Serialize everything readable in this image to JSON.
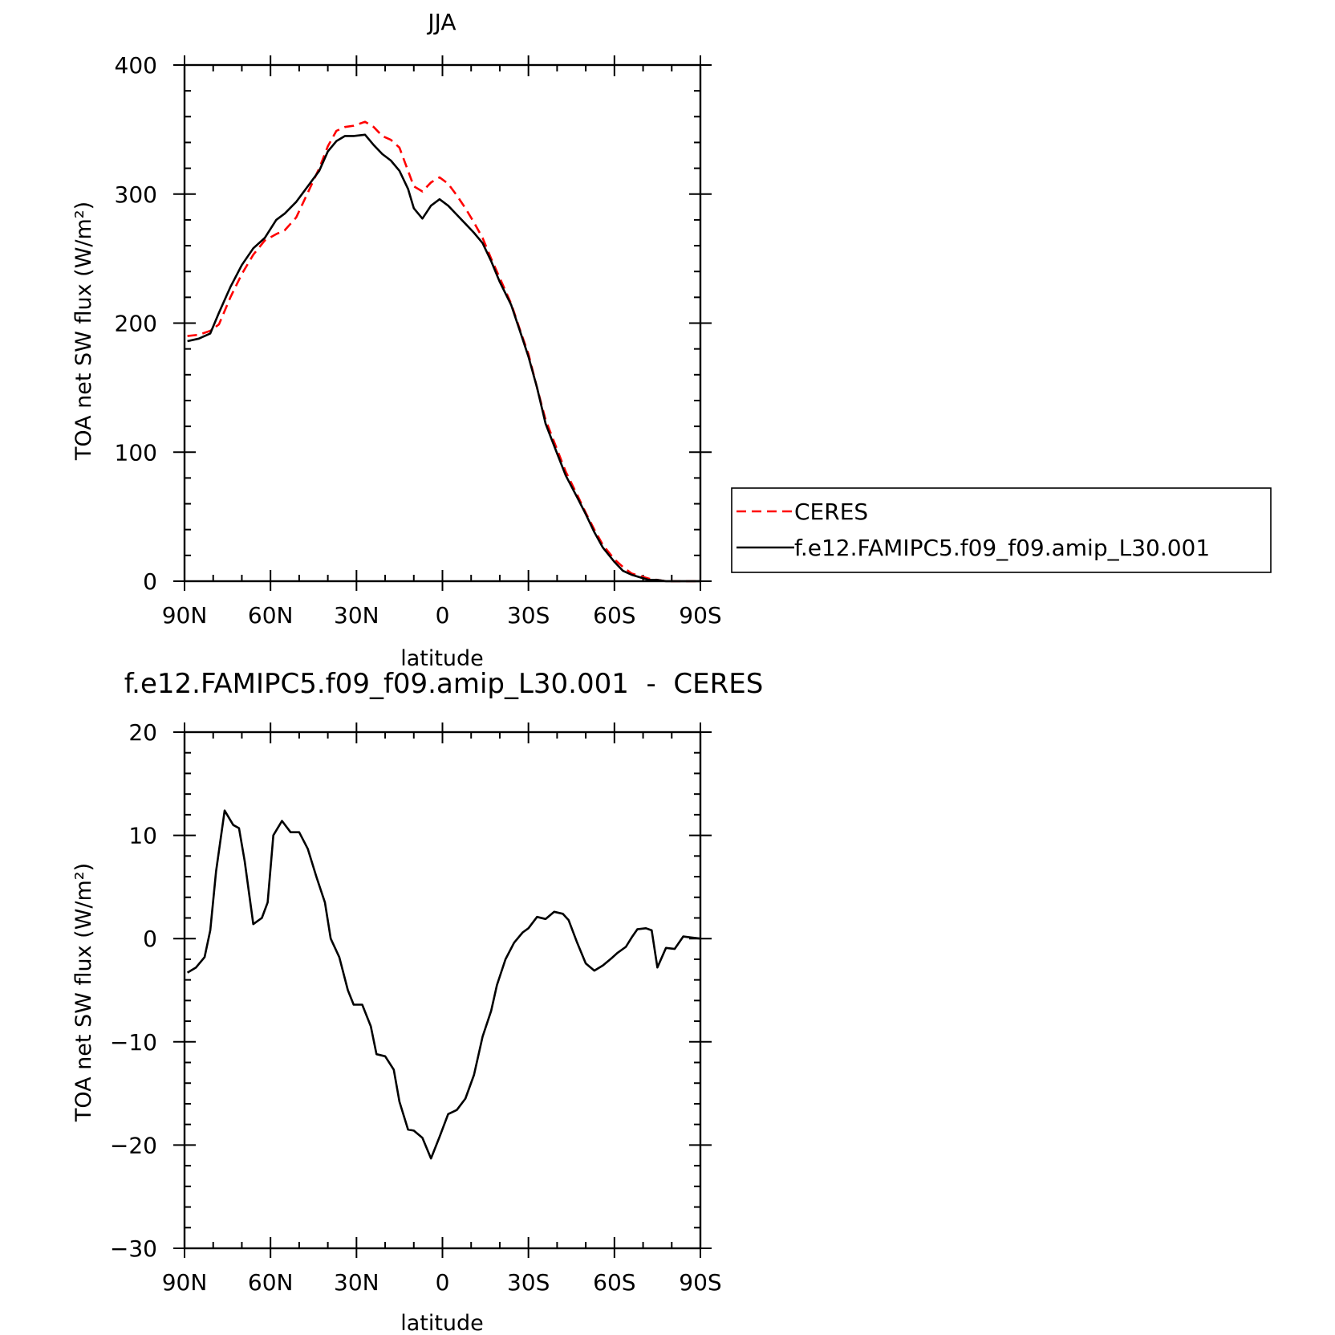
{
  "colors": {
    "ceres": "#ff0000",
    "model": "#000000"
  },
  "chart_data": [
    {
      "type": "line",
      "title": "JJA",
      "xlabel": "latitude",
      "ylabel": "TOA net SW flux (W/m²)",
      "xlim": [
        90,
        -90
      ],
      "ylim": [
        0,
        400
      ],
      "xticks": [
        {
          "value": 90,
          "label": "90N"
        },
        {
          "value": 60,
          "label": "60N"
        },
        {
          "value": 30,
          "label": "30N"
        },
        {
          "value": 0,
          "label": "0"
        },
        {
          "value": -30,
          "label": "30S"
        },
        {
          "value": -60,
          "label": "60S"
        },
        {
          "value": -90,
          "label": "90S"
        }
      ],
      "yticks": [
        {
          "value": 0,
          "label": "0"
        },
        {
          "value": 100,
          "label": "100"
        },
        {
          "value": 200,
          "label": "200"
        },
        {
          "value": 300,
          "label": "300"
        },
        {
          "value": 400,
          "label": "400"
        }
      ],
      "legend": {
        "placement": "right",
        "entries": [
          "CERES",
          "f.e12.FAMIPC5.f09_f09.amip_L30.001"
        ]
      },
      "series": [
        {
          "name": "CERES",
          "style": "dashed",
          "color": "#ff0000",
          "x": [
            89,
            85,
            81,
            78,
            74,
            70,
            66,
            62,
            58,
            55,
            51,
            47,
            43,
            40,
            37,
            34,
            31,
            27,
            24,
            21,
            18,
            15,
            12,
            10,
            7,
            4,
            1,
            -2,
            -5,
            -8,
            -11,
            -14,
            -17,
            -20,
            -24,
            -27,
            -30,
            -33,
            -36,
            -40,
            -43,
            -47,
            -50,
            -53,
            -56,
            -60,
            -63,
            -66,
            -69,
            -72,
            -75,
            -78,
            -81,
            -84,
            -87,
            -90
          ],
          "values": [
            190,
            191,
            194,
            199,
            220,
            238,
            253,
            264,
            269,
            272,
            282,
            301,
            320,
            337,
            349,
            352,
            353,
            356,
            352,
            345,
            342,
            336,
            318,
            306,
            302,
            309,
            313,
            308,
            299,
            289,
            278,
            266,
            250,
            235,
            215,
            195,
            176,
            150,
            125,
            102,
            85,
            67,
            53,
            40,
            28,
            17,
            11,
            6,
            4,
            2,
            1,
            0,
            0,
            0,
            0,
            0
          ]
        },
        {
          "name": "f.e12.FAMIPC5.f09_f09.amip_L30.001",
          "style": "solid",
          "color": "#000000",
          "x": [
            89,
            85,
            81,
            78,
            74,
            70,
            66,
            62,
            58,
            55,
            51,
            47,
            43,
            40,
            37,
            34,
            31,
            27,
            24,
            21,
            18,
            15,
            12,
            10,
            7,
            4,
            1,
            -2,
            -5,
            -8,
            -11,
            -14,
            -17,
            -20,
            -24,
            -27,
            -30,
            -33,
            -36,
            -40,
            -43,
            -47,
            -50,
            -53,
            -56,
            -60,
            -63,
            -66,
            -69,
            -72,
            -75,
            -78,
            -81,
            -84,
            -87,
            -90
          ],
          "values": [
            186,
            188,
            192,
            208,
            228,
            245,
            258,
            266,
            280,
            285,
            294,
            306,
            318,
            333,
            341,
            345,
            345,
            346,
            338,
            331,
            326,
            318,
            304,
            289,
            281,
            291,
            296,
            291,
            284,
            277,
            270,
            262,
            248,
            232,
            214,
            194,
            174,
            150,
            122,
            99,
            82,
            65,
            52,
            38,
            26,
            15,
            8,
            5,
            3,
            1,
            1,
            0,
            0,
            0,
            0,
            0
          ]
        }
      ]
    },
    {
      "type": "line",
      "title": "f.e12.FAMIPC5.f09_f09.amip_L30.001  -  CERES",
      "xlabel": "latitude",
      "ylabel": "TOA net SW flux (W/m²)",
      "xlim": [
        90,
        -90
      ],
      "ylim": [
        -30,
        20
      ],
      "xticks": [
        {
          "value": 90,
          "label": "90N"
        },
        {
          "value": 60,
          "label": "60N"
        },
        {
          "value": 30,
          "label": "30N"
        },
        {
          "value": 0,
          "label": "0"
        },
        {
          "value": -30,
          "label": "30S"
        },
        {
          "value": -60,
          "label": "60S"
        },
        {
          "value": -90,
          "label": "90S"
        }
      ],
      "yticks": [
        {
          "value": -30,
          "label": "−30"
        },
        {
          "value": -20,
          "label": "−20"
        },
        {
          "value": -10,
          "label": "−10"
        },
        {
          "value": 0,
          "label": "0"
        },
        {
          "value": 10,
          "label": "10"
        },
        {
          "value": 20,
          "label": "20"
        }
      ],
      "series": [
        {
          "style": "solid",
          "color": "#000000",
          "x": [
            89,
            86,
            83,
            81,
            79,
            76,
            73,
            71,
            69,
            66,
            63,
            61,
            59,
            56,
            53,
            50,
            47,
            44,
            41,
            39,
            36,
            33,
            31,
            28,
            25,
            23,
            20,
            17,
            15,
            12,
            10,
            7,
            4,
            1,
            -2,
            -5,
            -8,
            -11,
            -14,
            -17,
            -19,
            -22,
            -25,
            -28,
            -30,
            -33,
            -36,
            -39,
            -42,
            -44,
            -47,
            -50,
            -53,
            -56,
            -59,
            -61,
            -64,
            -66,
            -68,
            -71,
            -73,
            -75,
            -78,
            -81,
            -84,
            -87,
            -90
          ],
          "values": [
            -3.3,
            -2.8,
            -1.8,
            0.8,
            6.5,
            12.4,
            11.0,
            10.7,
            7.5,
            1.4,
            2.0,
            3.5,
            10.0,
            11.4,
            10.3,
            10.3,
            8.7,
            6.0,
            3.5,
            0.0,
            -1.8,
            -5.0,
            -6.4,
            -6.4,
            -8.5,
            -11.2,
            -11.4,
            -12.7,
            -15.8,
            -18.5,
            -18.6,
            -19.3,
            -21.3,
            -19.2,
            -17.0,
            -16.6,
            -15.5,
            -13.2,
            -9.5,
            -7.0,
            -4.5,
            -2.0,
            -0.4,
            0.6,
            1.0,
            2.1,
            1.9,
            2.6,
            2.4,
            1.8,
            -0.4,
            -2.4,
            -3.1,
            -2.6,
            -1.9,
            -1.4,
            -0.8,
            0.1,
            0.9,
            1.0,
            0.8,
            -2.8,
            -0.9,
            -1.0,
            0.2,
            0.1,
            0.0
          ]
        }
      ]
    }
  ]
}
